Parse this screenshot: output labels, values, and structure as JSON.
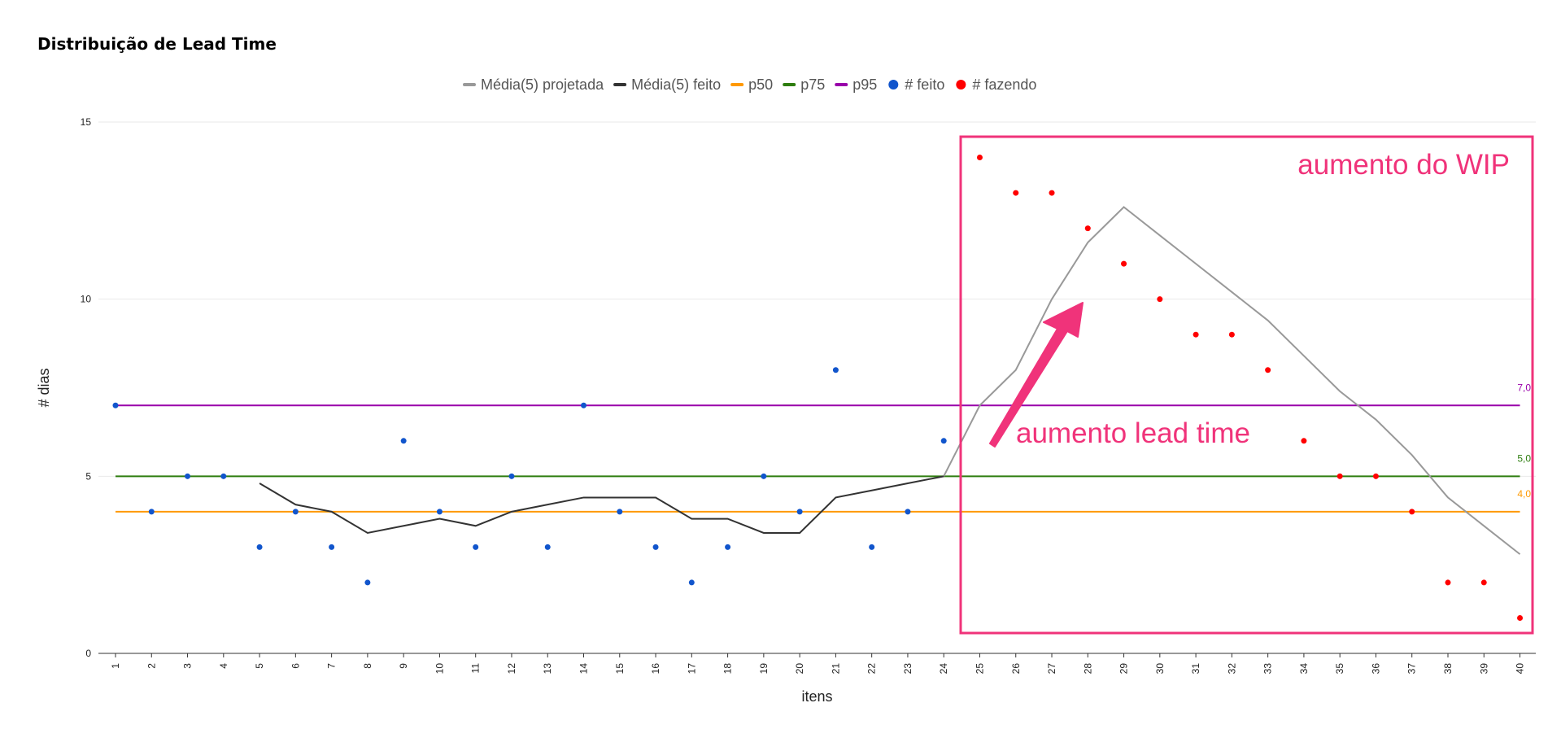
{
  "chart_data": {
    "type": "line",
    "title": "Distribuição de Lead Time",
    "xlabel": "itens",
    "ylabel": "# dias",
    "ylim": [
      0,
      15
    ],
    "yticks": [
      0,
      5,
      10,
      15
    ],
    "grid": true,
    "legend_position": "top",
    "categories": [
      "1",
      "2",
      "3",
      "4",
      "5",
      "6",
      "7",
      "8",
      "9",
      "10",
      "11",
      "12",
      "13",
      "14",
      "15",
      "16",
      "17",
      "18",
      "19",
      "20",
      "21",
      "22",
      "23",
      "24",
      "25",
      "26",
      "27",
      "28",
      "29",
      "30",
      "31",
      "32",
      "33",
      "34",
      "35",
      "36",
      "37",
      "38",
      "39",
      "40"
    ],
    "series": [
      {
        "name": "Média(5) projetada",
        "kind": "line",
        "color": "#999999",
        "x": [
          24,
          25,
          26,
          27,
          28,
          29,
          30,
          31,
          32,
          33,
          34,
          35,
          36,
          37,
          38,
          39,
          40
        ],
        "values": [
          5.0,
          7.0,
          8.0,
          10.0,
          11.6,
          12.6,
          11.8,
          11.0,
          10.2,
          9.4,
          8.4,
          7.4,
          6.6,
          5.6,
          4.4,
          3.6,
          2.8
        ]
      },
      {
        "name": "Média(5) feito",
        "kind": "line",
        "color": "#333333",
        "x": [
          5,
          6,
          7,
          8,
          9,
          10,
          11,
          12,
          13,
          14,
          15,
          16,
          17,
          18,
          19,
          20,
          21,
          22,
          23,
          24
        ],
        "values": [
          4.8,
          4.2,
          4.0,
          3.4,
          3.6,
          3.8,
          3.6,
          4.0,
          4.2,
          4.4,
          4.4,
          4.4,
          3.8,
          3.8,
          3.4,
          3.4,
          4.4,
          4.6,
          4.8,
          5.0
        ]
      },
      {
        "name": "p50",
        "kind": "hline",
        "color": "#ff9900",
        "value": 4.0,
        "label": "4,0"
      },
      {
        "name": "p75",
        "kind": "hline",
        "color": "#2e7d0f",
        "value": 5.0,
        "label": "5,0"
      },
      {
        "name": "p95",
        "kind": "hline",
        "color": "#9900aa",
        "value": 7.0,
        "label": "7,0"
      },
      {
        "name": "# feito",
        "kind": "scatter",
        "color": "#1155cc",
        "x": [
          1,
          2,
          3,
          4,
          5,
          6,
          7,
          8,
          9,
          10,
          11,
          12,
          13,
          14,
          15,
          16,
          17,
          18,
          19,
          20,
          21,
          22,
          23,
          24
        ],
        "values": [
          7,
          4,
          5,
          5,
          3,
          4,
          3,
          2,
          6,
          4,
          3,
          5,
          3,
          7,
          4,
          3,
          2,
          3,
          5,
          4,
          8,
          3,
          4,
          6
        ]
      },
      {
        "name": "# fazendo",
        "kind": "scatter",
        "color": "#ff0000",
        "x": [
          25,
          26,
          27,
          28,
          29,
          30,
          31,
          32,
          33,
          34,
          35,
          36,
          37,
          38,
          39,
          40
        ],
        "values": [
          14,
          13,
          13,
          12,
          11,
          10,
          9,
          9,
          8,
          6,
          5,
          5,
          4,
          2,
          2,
          1
        ]
      }
    ],
    "annotations": {
      "box_label": "aumento do WIP",
      "arrow_label": "aumento lead time",
      "color": "#f0337a"
    }
  }
}
